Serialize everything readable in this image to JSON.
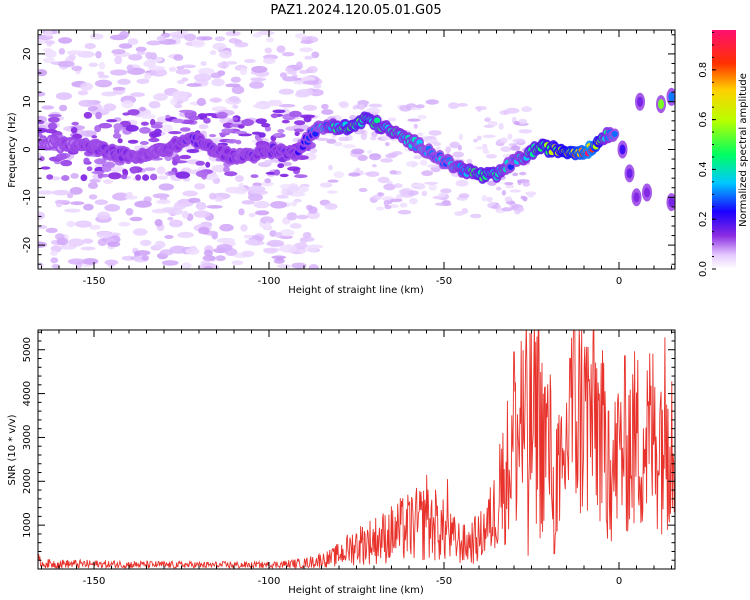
{
  "title": "PAZ1.2024.120.05.01.G05",
  "chart_data": [
    {
      "type": "heatmap",
      "xlabel": "Height of straight line (km)",
      "ylabel": "Frequency (Hz)",
      "xlim": [
        -166,
        16
      ],
      "ylim": [
        -25,
        25
      ],
      "xticks": [
        -150,
        -100,
        -50,
        0
      ],
      "yticks": [
        -20,
        -10,
        0,
        10,
        20
      ],
      "colorbar": {
        "label": "Normalized spectral amplitude",
        "range": [
          0,
          0.96
        ],
        "ticks": [
          0.0,
          0.2,
          0.4,
          0.6,
          0.8
        ]
      },
      "ridge": [
        {
          "x": -165,
          "y": 1.5,
          "amp": 0.1
        },
        {
          "x": -158,
          "y": 1,
          "amp": 0.12
        },
        {
          "x": -150,
          "y": 0.5,
          "amp": 0.13
        },
        {
          "x": -143,
          "y": -1,
          "amp": 0.15
        },
        {
          "x": -136,
          "y": -1.5,
          "amp": 0.13
        },
        {
          "x": -128,
          "y": 0.5,
          "amp": 0.15
        },
        {
          "x": -122,
          "y": 2.5,
          "amp": 0.18
        },
        {
          "x": -116,
          "y": 0,
          "amp": 0.15
        },
        {
          "x": -110,
          "y": -1.5,
          "amp": 0.14
        },
        {
          "x": -104,
          "y": -1,
          "amp": 0.16
        },
        {
          "x": -98,
          "y": 0,
          "amp": 0.17
        },
        {
          "x": -93,
          "y": -1,
          "amp": 0.17
        },
        {
          "x": -87,
          "y": 4,
          "amp": 0.28
        },
        {
          "x": -82,
          "y": 5,
          "amp": 0.4
        },
        {
          "x": -77,
          "y": 4.5,
          "amp": 0.5
        },
        {
          "x": -72,
          "y": 6.5,
          "amp": 0.48
        },
        {
          "x": -67,
          "y": 4.5,
          "amp": 0.42
        },
        {
          "x": -63,
          "y": 3,
          "amp": 0.4
        },
        {
          "x": -59,
          "y": 1.5,
          "amp": 0.38
        },
        {
          "x": -55,
          "y": 0,
          "amp": 0.34
        },
        {
          "x": -51,
          "y": -2,
          "amp": 0.32
        },
        {
          "x": -47,
          "y": -3.5,
          "amp": 0.36
        },
        {
          "x": -43,
          "y": -4.5,
          "amp": 0.42
        },
        {
          "x": -39,
          "y": -5.5,
          "amp": 0.5
        },
        {
          "x": -35,
          "y": -5.5,
          "amp": 0.45
        },
        {
          "x": -31,
          "y": -3,
          "amp": 0.34
        },
        {
          "x": -27,
          "y": -1.5,
          "amp": 0.38
        },
        {
          "x": -23,
          "y": 0.5,
          "amp": 0.52
        },
        {
          "x": -18,
          "y": 0,
          "amp": 0.6
        },
        {
          "x": -13,
          "y": -0.5,
          "amp": 0.72
        },
        {
          "x": -8,
          "y": 0,
          "amp": 0.9
        },
        {
          "x": -4,
          "y": 3,
          "amp": 0.42
        },
        {
          "x": -1,
          "y": 3.5,
          "amp": 0.32
        }
      ],
      "ridge_after_zero": [
        {
          "x": 1,
          "y": 0,
          "amp": 0.2
        },
        {
          "x": 3,
          "y": -5,
          "amp": 0.16
        },
        {
          "x": 5,
          "y": -10,
          "amp": 0.14
        },
        {
          "x": 6,
          "y": 10,
          "amp": 0.15
        },
        {
          "x": 8,
          "y": -9,
          "amp": 0.14
        },
        {
          "x": 12,
          "y": 9.5,
          "amp": 0.55
        },
        {
          "x": 15,
          "y": 11,
          "amp": 0.3
        },
        {
          "x": 15,
          "y": -11,
          "amp": 0.15
        }
      ]
    },
    {
      "type": "line",
      "xlabel": "Height of straight line (km)",
      "ylabel": "SNR (10 * v/v)",
      "xlim": [
        -166,
        16
      ],
      "ylim": [
        0,
        5450
      ],
      "xticks": [
        -150,
        -100,
        -50,
        0
      ],
      "yticks": [
        1000,
        2000,
        3000,
        4000,
        5000
      ],
      "series_color": "#e8312a",
      "envelope": [
        {
          "x": -166,
          "y": 200
        },
        {
          "x": -165,
          "y": 120
        },
        {
          "x": -140,
          "y": 100
        },
        {
          "x": -120,
          "y": 90
        },
        {
          "x": -100,
          "y": 90
        },
        {
          "x": -90,
          "y": 130
        },
        {
          "x": -82,
          "y": 250
        },
        {
          "x": -75,
          "y": 550
        },
        {
          "x": -68,
          "y": 700
        },
        {
          "x": -62,
          "y": 900
        },
        {
          "x": -56,
          "y": 1050
        },
        {
          "x": -52,
          "y": 1000
        },
        {
          "x": -48,
          "y": 700
        },
        {
          "x": -44,
          "y": 550
        },
        {
          "x": -40,
          "y": 700
        },
        {
          "x": -36,
          "y": 1200
        },
        {
          "x": -33,
          "y": 2000
        },
        {
          "x": -30,
          "y": 2800
        },
        {
          "x": -27,
          "y": 3200
        },
        {
          "x": -24,
          "y": 3300
        },
        {
          "x": -21,
          "y": 3000
        },
        {
          "x": -18,
          "y": 2200
        },
        {
          "x": -16,
          "y": 2000
        },
        {
          "x": -14,
          "y": 3600
        },
        {
          "x": -10,
          "y": 3500
        },
        {
          "x": -6,
          "y": 3400
        },
        {
          "x": -4,
          "y": 2600
        },
        {
          "x": -2,
          "y": 2100
        },
        {
          "x": 0,
          "y": 2700
        },
        {
          "x": 3,
          "y": 2900
        },
        {
          "x": 7,
          "y": 2950
        },
        {
          "x": 11,
          "y": 3100
        },
        {
          "x": 16,
          "y": 3300
        }
      ],
      "peaks": [
        {
          "x": -58,
          "y": 1700
        },
        {
          "x": -55,
          "y": 2150
        },
        {
          "x": -49,
          "y": 2050
        },
        {
          "x": -34,
          "y": 2850
        },
        {
          "x": -30,
          "y": 4950
        },
        {
          "x": -28,
          "y": 5200
        },
        {
          "x": -26,
          "y": 5100
        },
        {
          "x": -23,
          "y": 5450
        },
        {
          "x": -22,
          "y": 4700
        },
        {
          "x": -14,
          "y": 4800
        },
        {
          "x": -10,
          "y": 4650
        },
        {
          "x": -7,
          "y": 4050
        },
        {
          "x": -6,
          "y": 4250
        },
        {
          "x": -3,
          "y": 3600
        },
        {
          "x": 14,
          "y": 3650
        }
      ],
      "dips": [
        {
          "x": -26,
          "y": 300
        },
        {
          "x": -22.5,
          "y": 700
        },
        {
          "x": -18.5,
          "y": 350
        },
        {
          "x": -17,
          "y": 1100
        },
        {
          "x": -3.5,
          "y": 1050
        },
        {
          "x": -2.5,
          "y": 900
        }
      ]
    }
  ]
}
